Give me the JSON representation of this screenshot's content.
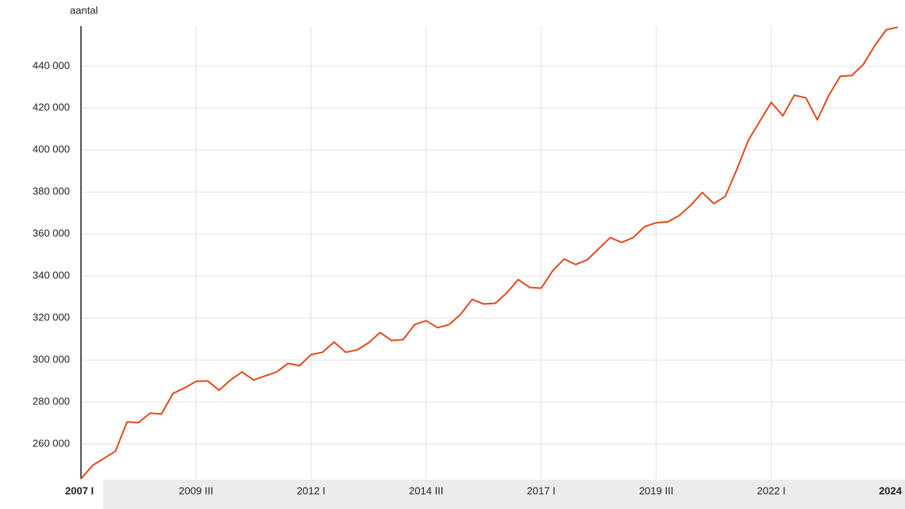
{
  "chart_data": {
    "type": "line",
    "y_label": "aantal",
    "categories": [
      "2007 I",
      null,
      null,
      null,
      null,
      null,
      null,
      null,
      null,
      null,
      "2009 III",
      null,
      null,
      null,
      null,
      null,
      null,
      null,
      null,
      null,
      "2012 I",
      null,
      null,
      null,
      null,
      null,
      null,
      null,
      null,
      null,
      "2014 III",
      null,
      null,
      null,
      null,
      null,
      null,
      null,
      null,
      null,
      "2017 I",
      null,
      null,
      null,
      null,
      null,
      null,
      null,
      null,
      null,
      "2019 III",
      null,
      null,
      null,
      null,
      null,
      null,
      null,
      null,
      null,
      "2022 I",
      null,
      null,
      null,
      null,
      null,
      null,
      null,
      null,
      null,
      null,
      "2024"
    ],
    "series": [
      {
        "color": "#e24a1c",
        "values": [
          243400,
          249800,
          253200,
          256600,
          270500,
          270200,
          274700,
          274300,
          284100,
          286700,
          289800,
          290100,
          285600,
          290500,
          294300,
          290500,
          292400,
          294300,
          298400,
          297300,
          302600,
          303700,
          308600,
          303700,
          304800,
          308200,
          313100,
          309300,
          309700,
          316900,
          318700,
          315400,
          316900,
          321800,
          328900,
          326700,
          327000,
          331900,
          338300,
          334600,
          334200,
          342500,
          348100,
          345500,
          347700,
          353000,
          358300,
          356000,
          358300,
          363600,
          365400,
          365800,
          368800,
          373700,
          379800,
          374500,
          377900,
          390700,
          404600,
          413700,
          422700,
          416300,
          426100,
          424900,
          414400,
          426100,
          435100,
          435500,
          440800,
          449800,
          457300,
          458500
        ]
      }
    ],
    "ylim": [
      243400,
      459000
    ],
    "yticks": [
      {
        "value": 260000,
        "label": "260 000"
      },
      {
        "value": 280000,
        "label": "280 000"
      },
      {
        "value": 300000,
        "label": "300 000"
      },
      {
        "value": 320000,
        "label": "320 000"
      },
      {
        "value": 340000,
        "label": "340 000"
      },
      {
        "value": 360000,
        "label": "360 000"
      },
      {
        "value": 380000,
        "label": "380 000"
      },
      {
        "value": 400000,
        "label": "400 000"
      },
      {
        "value": 420000,
        "label": "420 000"
      },
      {
        "value": 440000,
        "label": "440 000"
      }
    ],
    "grid": true
  }
}
